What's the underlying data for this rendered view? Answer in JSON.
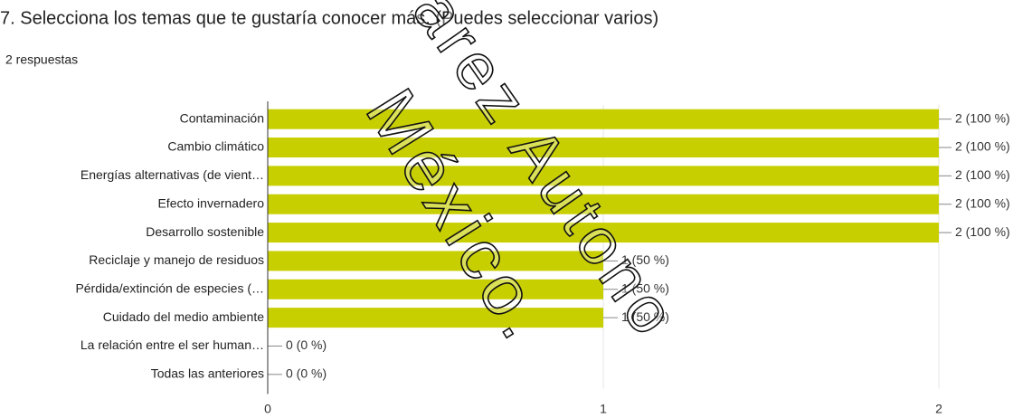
{
  "chart_data": {
    "type": "bar",
    "orientation": "horizontal",
    "title": "7. Selecciona los temas que te gustaría conocer más. (Puedes seleccionar varios)",
    "subtitle": "2 respuestas",
    "categories": [
      "Contaminación",
      "Cambio climático",
      "Energías alternativas (de vient…",
      "Efecto invernadero",
      "Desarrollo sostenible",
      "Reciclaje y manejo de residuos",
      "Pérdida/extinción de especies (…",
      "Cuidado del medio ambiente",
      "La relación entre el ser human…",
      "Todas las anteriores"
    ],
    "values": [
      2,
      2,
      2,
      2,
      2,
      1,
      1,
      1,
      0,
      0
    ],
    "value_labels": [
      "2 (100 %)",
      "2 (100 %)",
      "2 (100 %)",
      "2 (100 %)",
      "2 (100 %)",
      "1 (50 %)",
      "1 (50 %)",
      "1 (50 %)",
      "0 (0 %)",
      "0 (0 %)"
    ],
    "color": "#c8cf00",
    "xlim": [
      0,
      2
    ],
    "xticks": [
      0,
      1,
      2
    ],
    "grid": true
  },
  "watermark": [
    "arez Autono",
    "México."
  ]
}
